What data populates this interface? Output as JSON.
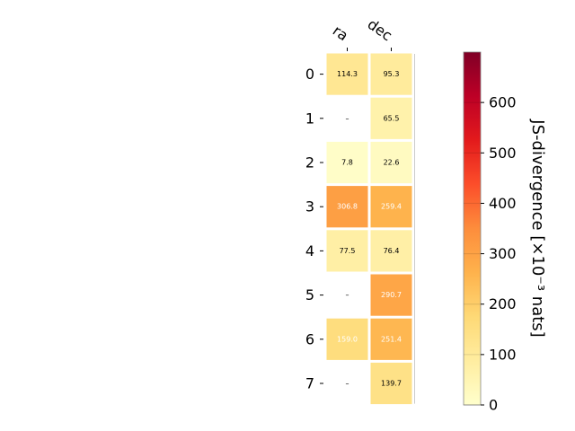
{
  "chart_data": {
    "type": "heatmap",
    "columns": [
      "ra",
      "dec"
    ],
    "rows": [
      "0",
      "1",
      "2",
      "3",
      "4",
      "5",
      "6",
      "7"
    ],
    "values": [
      [
        114.3,
        95.3
      ],
      [
        null,
        65.5
      ],
      [
        7.8,
        22.6
      ],
      [
        306.8,
        259.4
      ],
      [
        77.5,
        76.4
      ],
      [
        null,
        290.7
      ],
      [
        159.0,
        251.4
      ],
      [
        null,
        139.7
      ]
    ],
    "labels": [
      [
        "114.3",
        "95.3"
      ],
      [
        "–",
        "65.5"
      ],
      [
        "7.8",
        "22.6"
      ],
      [
        "306.8",
        "259.4"
      ],
      [
        "77.5",
        "76.4"
      ],
      [
        "–",
        "290.7"
      ],
      [
        "159.0",
        "251.4"
      ],
      [
        "–",
        "139.7"
      ]
    ],
    "colorbar": {
      "label": "JS-divergence [×10⁻³ nats]",
      "range": [
        0,
        700
      ],
      "ticks": [
        0,
        100,
        200,
        300,
        400,
        500,
        600
      ],
      "tick_labels": [
        "0",
        "100",
        "200",
        "300",
        "400",
        "500",
        "600"
      ],
      "colormap": "YlOrRd"
    },
    "grid": false,
    "legend": "colorbar-right"
  }
}
